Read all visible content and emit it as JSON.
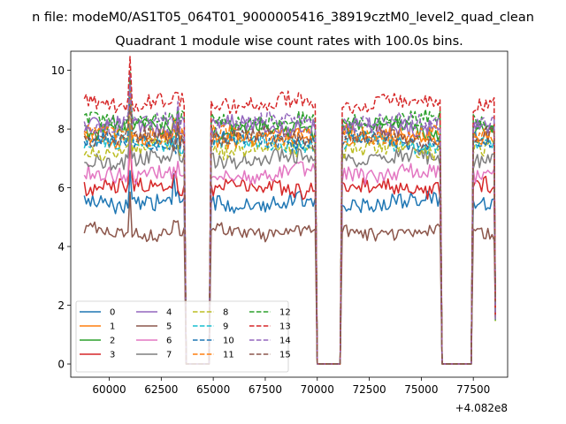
{
  "chart_data": {
    "type": "line",
    "suptitle": "n file: modeM0/AS1T05_064T01_9000005416_38919cztM0_level2_quad_clean",
    "title": "Quadrant 1 module wise count rates with 100.0s bins.",
    "xlabel": "",
    "ylabel": "",
    "x_offset_label": "+4.082e8",
    "xlim": [
      58150,
      79150
    ],
    "ylim": [
      -0.45,
      10.65
    ],
    "xticks": [
      60000,
      62500,
      65000,
      67500,
      70000,
      72500,
      75000,
      77500
    ],
    "xtick_labels": [
      "60000",
      "62500",
      "65000",
      "67500",
      "70000",
      "72500",
      "75000",
      "77500"
    ],
    "yticks": [
      0,
      2,
      4,
      6,
      8,
      10
    ],
    "ytick_labels": [
      "0",
      "2",
      "4",
      "6",
      "8",
      "10"
    ],
    "bin_seconds": 100,
    "segments": [
      [
        58800,
        63600
      ],
      [
        64900,
        69900
      ],
      [
        71200,
        75900
      ],
      [
        77500,
        78500
      ]
    ],
    "gaps": [
      [
        63700,
        64800
      ],
      [
        70000,
        71100
      ],
      [
        76000,
        77400
      ]
    ],
    "legend_location": "lower-left",
    "legend_columns": 4,
    "series": [
      {
        "name": "0",
        "color": "#1f77b4",
        "dash": "solid",
        "level": 5.5
      },
      {
        "name": "1",
        "color": "#ff7f0e",
        "dash": "solid",
        "level": 7.7
      },
      {
        "name": "2",
        "color": "#2ca02c",
        "dash": "solid",
        "level": 8.0
      },
      {
        "name": "3",
        "color": "#d62728",
        "dash": "solid",
        "level": 6.0
      },
      {
        "name": "4",
        "color": "#9467bd",
        "dash": "solid",
        "level": 8.1
      },
      {
        "name": "5",
        "color": "#8c564b",
        "dash": "solid",
        "level": 4.5
      },
      {
        "name": "6",
        "color": "#e377c2",
        "dash": "solid",
        "level": 6.5
      },
      {
        "name": "7",
        "color": "#7f7f7f",
        "dash": "solid",
        "level": 7.0
      },
      {
        "name": "8",
        "color": "#bcbd22",
        "dash": "dashed",
        "level": 7.3
      },
      {
        "name": "9",
        "color": "#17becf",
        "dash": "dashed",
        "level": 7.5
      },
      {
        "name": "10",
        "color": "#1f77b4",
        "dash": "dashed",
        "level": 7.6
      },
      {
        "name": "11",
        "color": "#ff7f0e",
        "dash": "dashed",
        "level": 7.8
      },
      {
        "name": "12",
        "color": "#2ca02c",
        "dash": "dashed",
        "level": 8.3
      },
      {
        "name": "13",
        "color": "#d62728",
        "dash": "dashed",
        "level": 8.9
      },
      {
        "name": "14",
        "color": "#9467bd",
        "dash": "dashed",
        "level": 8.2
      },
      {
        "name": "15",
        "color": "#8c564b",
        "dash": "dashed",
        "level": 7.7
      }
    ]
  }
}
